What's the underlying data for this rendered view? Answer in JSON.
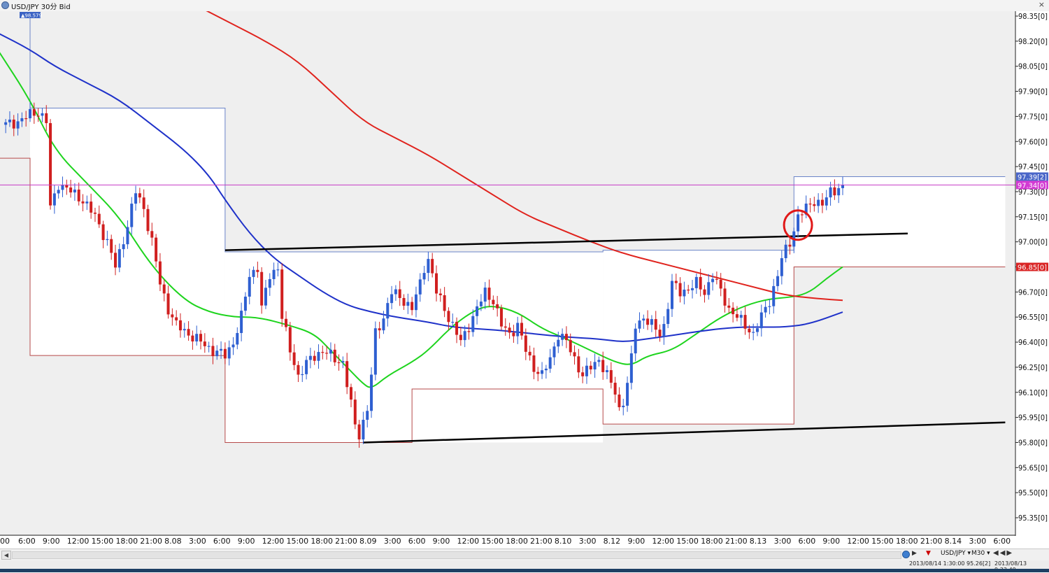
{
  "window": {
    "title": "USD/JPY 30分 Bid",
    "close_label": "×"
  },
  "footer": {
    "scroll_left": "◀",
    "play": "▶",
    "warning": "▼",
    "symbol": "USD/JPY ▾",
    "timeframe": "M30 ▾",
    "nav": "◀◀▶",
    "info_left": "2013/08/14 1:30:00  95.26[2]",
    "info_right": "2013/08/13 9:33:49"
  },
  "colors": {
    "up": "#2e5fd1",
    "down": "#d01f1f",
    "ma_short": "#1ed41e",
    "ma_mid": "#1f32c9",
    "ma_long": "#e0231d",
    "box_high": "#6b84c8",
    "box_low": "#b64a4a",
    "trend": "#000000",
    "price_line": "#c43ac4",
    "marker": "#e01818",
    "box_fill": "#efefef"
  },
  "chart_data": {
    "type": "candlestick",
    "title": "USD/JPY 30分 Bid",
    "ylim": [
      95.25,
      98.4
    ],
    "y_ticks": [
      98.35,
      98.2,
      98.05,
      97.9,
      97.75,
      97.6,
      97.45,
      97.3,
      97.15,
      97.0,
      96.85,
      96.7,
      96.55,
      96.4,
      96.25,
      96.1,
      95.95,
      95.8,
      95.65,
      95.5,
      95.35
    ],
    "y_tick_labels": [
      "98.35[0]",
      "98.20[0]",
      "98.05[0]",
      "97.90[0]",
      "97.75[0]",
      "97.60[0]",
      "97.45[0]",
      "97.30[0]",
      "97.15[0]",
      "97.00[0]",
      "96.85[0]",
      "96.70[0]",
      "96.55[0]",
      "96.40[0]",
      "96.25[0]",
      "96.10[0]",
      "95.95[0]",
      "95.80[0]",
      "95.65[0]",
      "95.50[0]",
      "95.35[0]"
    ],
    "x_labels": [
      "00",
      "6:00",
      "9:00",
      "12:00",
      "15:00",
      "18:00",
      "21:00",
      "8.08",
      "3:00",
      "6:00",
      "9:00",
      "12:00",
      "15:00",
      "18:00",
      "21:00",
      "8.09",
      "3:00",
      "6:00",
      "9:00",
      "12:00",
      "15:00",
      "18:00",
      "21:00",
      "8.10",
      "3:00",
      "8.12",
      "9:00",
      "12:00",
      "15:00",
      "18:00",
      "21:00",
      "8.13",
      "3:00",
      "6:00",
      "9:00",
      "12:00",
      "15:00",
      "18:00",
      "21:00",
      "8.14",
      "3:00",
      "6:00"
    ],
    "x_label_index": [
      -1,
      6,
      12,
      18,
      24,
      30,
      36,
      42,
      48,
      54,
      60,
      66,
      72,
      78,
      84,
      90,
      96,
      102,
      108,
      114,
      120,
      126,
      132,
      138,
      144,
      150,
      156,
      162,
      168,
      174,
      180,
      186,
      192,
      198,
      204,
      210,
      216,
      222,
      228,
      234,
      240,
      246
    ],
    "last_index": 206,
    "anchors": [
      [
        0,
        97.7
      ],
      [
        3,
        97.72
      ],
      [
        6,
        97.76
      ],
      [
        8,
        97.78
      ],
      [
        10,
        97.72
      ],
      [
        11,
        97.2
      ],
      [
        13,
        97.35
      ],
      [
        16,
        97.3
      ],
      [
        19,
        97.25
      ],
      [
        22,
        97.15
      ],
      [
        25,
        97.0
      ],
      [
        27,
        96.85
      ],
      [
        30,
        97.1
      ],
      [
        32,
        97.3
      ],
      [
        34,
        97.2
      ],
      [
        36,
        97.0
      ],
      [
        38,
        96.75
      ],
      [
        40,
        96.6
      ],
      [
        42,
        96.5
      ],
      [
        45,
        96.45
      ],
      [
        48,
        96.4
      ],
      [
        51,
        96.35
      ],
      [
        54,
        96.32
      ],
      [
        56,
        96.4
      ],
      [
        58,
        96.55
      ],
      [
        60,
        96.8
      ],
      [
        62,
        96.85
      ],
      [
        63,
        96.6
      ],
      [
        65,
        96.8
      ],
      [
        67,
        96.85
      ],
      [
        68,
        96.55
      ],
      [
        70,
        96.35
      ],
      [
        72,
        96.2
      ],
      [
        75,
        96.3
      ],
      [
        78,
        96.35
      ],
      [
        81,
        96.3
      ],
      [
        83,
        96.28
      ],
      [
        84,
        96.15
      ],
      [
        86,
        95.9
      ],
      [
        87,
        95.85
      ],
      [
        89,
        96.0
      ],
      [
        90,
        96.2
      ],
      [
        91,
        96.45
      ],
      [
        93,
        96.55
      ],
      [
        95,
        96.7
      ],
      [
        98,
        96.65
      ],
      [
        100,
        96.6
      ],
      [
        102,
        96.75
      ],
      [
        103,
        96.85
      ],
      [
        104,
        96.9
      ],
      [
        106,
        96.7
      ],
      [
        108,
        96.6
      ],
      [
        110,
        96.5
      ],
      [
        112,
        96.4
      ],
      [
        114,
        96.5
      ],
      [
        116,
        96.6
      ],
      [
        118,
        96.7
      ],
      [
        120,
        96.65
      ],
      [
        122,
        96.5
      ],
      [
        124,
        96.45
      ],
      [
        126,
        96.5
      ],
      [
        128,
        96.35
      ],
      [
        130,
        96.25
      ],
      [
        132,
        96.2
      ],
      [
        134,
        96.3
      ],
      [
        136,
        96.45
      ],
      [
        138,
        96.4
      ],
      [
        140,
        96.3
      ],
      [
        142,
        96.2
      ],
      [
        144,
        96.25
      ],
      [
        146,
        96.3
      ],
      [
        148,
        96.2
      ],
      [
        150,
        96.1
      ],
      [
        151,
        96.0
      ],
      [
        152,
        96.05
      ],
      [
        153,
        96.15
      ],
      [
        154,
        96.3
      ],
      [
        155,
        96.5
      ],
      [
        157,
        96.55
      ],
      [
        159,
        96.5
      ],
      [
        161,
        96.45
      ],
      [
        162,
        96.5
      ],
      [
        164,
        96.75
      ],
      [
        166,
        96.7
      ],
      [
        168,
        96.72
      ],
      [
        170,
        96.75
      ],
      [
        172,
        96.7
      ],
      [
        174,
        96.8
      ],
      [
        176,
        96.7
      ],
      [
        178,
        96.6
      ],
      [
        180,
        96.55
      ],
      [
        182,
        96.5
      ],
      [
        184,
        96.45
      ],
      [
        186,
        96.55
      ],
      [
        188,
        96.65
      ],
      [
        190,
        96.8
      ],
      [
        191,
        96.9
      ],
      [
        193,
        97.0
      ],
      [
        195,
        97.15
      ],
      [
        197,
        97.2
      ],
      [
        199,
        97.25
      ],
      [
        201,
        97.22
      ],
      [
        203,
        97.3
      ],
      [
        206,
        97.34
      ]
    ],
    "moving_averages": [
      {
        "name": "ma_short",
        "points": [
          [
            -2,
            98.15
          ],
          [
            6,
            97.85
          ],
          [
            12,
            97.55
          ],
          [
            20,
            97.35
          ],
          [
            28,
            97.15
          ],
          [
            36,
            96.85
          ],
          [
            44,
            96.65
          ],
          [
            50,
            96.58
          ],
          [
            56,
            96.55
          ],
          [
            62,
            96.55
          ],
          [
            70,
            96.5
          ],
          [
            76,
            96.45
          ],
          [
            80,
            96.35
          ],
          [
            84,
            96.25
          ],
          [
            88,
            96.15
          ],
          [
            90,
            96.12
          ],
          [
            94,
            96.2
          ],
          [
            100,
            96.28
          ],
          [
            104,
            96.35
          ],
          [
            110,
            96.5
          ],
          [
            116,
            96.6
          ],
          [
            120,
            96.62
          ],
          [
            126,
            96.58
          ],
          [
            132,
            96.48
          ],
          [
            138,
            96.42
          ],
          [
            144,
            96.35
          ],
          [
            150,
            96.28
          ],
          [
            154,
            96.26
          ],
          [
            158,
            96.32
          ],
          [
            164,
            96.35
          ],
          [
            170,
            96.45
          ],
          [
            176,
            96.55
          ],
          [
            182,
            96.62
          ],
          [
            188,
            96.66
          ],
          [
            194,
            96.67
          ],
          [
            198,
            96.7
          ],
          [
            202,
            96.78
          ],
          [
            206,
            96.85
          ]
        ]
      },
      {
        "name": "ma_mid",
        "points": [
          [
            -2,
            98.25
          ],
          [
            6,
            98.15
          ],
          [
            12,
            98.05
          ],
          [
            20,
            97.95
          ],
          [
            28,
            97.85
          ],
          [
            36,
            97.7
          ],
          [
            44,
            97.55
          ],
          [
            50,
            97.4
          ],
          [
            54,
            97.25
          ],
          [
            60,
            97.05
          ],
          [
            66,
            96.9
          ],
          [
            72,
            96.8
          ],
          [
            78,
            96.7
          ],
          [
            84,
            96.62
          ],
          [
            90,
            96.58
          ],
          [
            96,
            96.55
          ],
          [
            104,
            96.52
          ],
          [
            110,
            96.49
          ],
          [
            116,
            96.48
          ],
          [
            122,
            96.47
          ],
          [
            130,
            96.45
          ],
          [
            138,
            96.43
          ],
          [
            146,
            96.42
          ],
          [
            152,
            96.4
          ],
          [
            158,
            96.42
          ],
          [
            164,
            96.44
          ],
          [
            172,
            96.47
          ],
          [
            180,
            96.49
          ],
          [
            186,
            96.49
          ],
          [
            192,
            96.49
          ],
          [
            198,
            96.51
          ],
          [
            206,
            96.58
          ]
        ]
      },
      {
        "name": "ma_long",
        "points": [
          [
            48,
            98.4
          ],
          [
            56,
            98.3
          ],
          [
            64,
            98.2
          ],
          [
            72,
            98.08
          ],
          [
            80,
            97.9
          ],
          [
            88,
            97.72
          ],
          [
            96,
            97.62
          ],
          [
            104,
            97.52
          ],
          [
            112,
            97.4
          ],
          [
            120,
            97.28
          ],
          [
            128,
            97.16
          ],
          [
            136,
            97.08
          ],
          [
            144,
            97.0
          ],
          [
            152,
            96.93
          ],
          [
            160,
            96.88
          ],
          [
            168,
            96.83
          ],
          [
            176,
            96.78
          ],
          [
            184,
            96.73
          ],
          [
            192,
            96.68
          ],
          [
            200,
            96.66
          ],
          [
            206,
            96.65
          ]
        ]
      }
    ],
    "trend_lines": [
      {
        "points": [
          [
            54,
            96.95
          ],
          [
            222,
            97.05
          ]
        ]
      },
      {
        "points": [
          [
            88,
            95.8
          ],
          [
            246,
            95.92
          ]
        ]
      }
    ],
    "high_boxes": [
      {
        "start": 6,
        "end": 54,
        "value": 97.8
      },
      {
        "start": 54,
        "end": 147,
        "value": 96.94
      },
      {
        "start": 147,
        "end": 194,
        "value": 96.95
      },
      {
        "start": 194,
        "end": 246,
        "value": 97.39
      }
    ],
    "low_boxes": [
      {
        "start": -2,
        "end": 6,
        "value": 97.5
      },
      {
        "start": 6,
        "end": 54,
        "value": 96.32
      },
      {
        "start": 54,
        "end": 100,
        "value": 95.8
      },
      {
        "start": 100,
        "end": 147,
        "value": 96.12
      },
      {
        "start": 147,
        "end": 194,
        "value": 95.91
      },
      {
        "start": 194,
        "end": 246,
        "value": 96.85
      }
    ],
    "price_line": {
      "value": 97.34,
      "label": "97.34[0]"
    },
    "price_labels": [
      {
        "value": 97.39,
        "label": "97.39[2]"
      },
      {
        "value": 96.85,
        "label": "96.85[0]"
      }
    ],
    "high_marker": {
      "index": 6,
      "label": "98.579"
    },
    "marker_circle": {
      "index": 195,
      "value": 97.1
    }
  }
}
